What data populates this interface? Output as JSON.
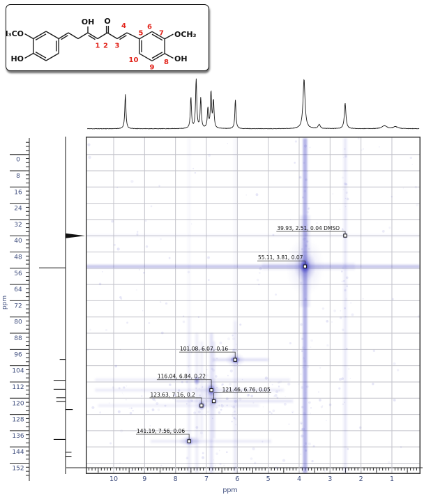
{
  "figure": {
    "type": "2D HSQC NMR spectrum with 1H and 13C projections and molecular structure inset",
    "solvent_note": "DMSO"
  },
  "structure": {
    "name": "curcumin (enol form)",
    "atom_labels": {
      "left_methoxy": "H₃CO",
      "left_hydroxyl": "HO",
      "enol_oh": "OH",
      "ketone_o": "O",
      "right_methoxy": "OCH₃",
      "right_hydroxyl": "OH"
    },
    "position_numbers": [
      "1",
      "2",
      "3",
      "4",
      "5",
      "6",
      "7",
      "8",
      "9",
      "10"
    ],
    "number_color": "#e2231a"
  },
  "chart_data": {
    "type": "heatmap",
    "subtype": "2D NMR correlation map (1H horizontal vs 13C vertical)",
    "x_axis": {
      "label": "ppm",
      "nucleus": "1H",
      "range": [
        10.9,
        0.07
      ],
      "ticks": [
        10,
        9,
        8,
        7,
        6,
        5,
        4,
        3,
        2,
        1
      ]
    },
    "y_axis": {
      "label": "ppm",
      "nucleus": "13C",
      "range": [
        -8.8,
        157.3
      ],
      "ticks": [
        0,
        8,
        16,
        24,
        32,
        40,
        48,
        56,
        64,
        72,
        80,
        88,
        96,
        104,
        112,
        120,
        128,
        136,
        144,
        152
      ]
    },
    "grid": true,
    "contour_color": "#4040c0",
    "grid_color": "#c2c2ca",
    "axis_label_color": "#3f4e7e",
    "cross_peaks": [
      {
        "c13": 39.93,
        "h1": 2.51,
        "intensity": 0.04,
        "label": "39.93, 2.51, 0.04 DMSO",
        "assignment": "DMSO"
      },
      {
        "c13": 55.11,
        "h1": 3.81,
        "intensity": 0.07,
        "label": "55.11, 3.81, 0.07"
      },
      {
        "c13": 101.08,
        "h1": 6.07,
        "intensity": 0.16,
        "label": "101.08, 6.07, 0.16"
      },
      {
        "c13": 116.04,
        "h1": 6.84,
        "intensity": 0.22,
        "label": "116.04, 6.84, 0.22"
      },
      {
        "c13": 123.63,
        "h1": 7.16,
        "intensity": 0.2,
        "label": "123.63, 7.16, 0.2"
      },
      {
        "c13": 121.46,
        "h1": 6.76,
        "intensity": 0.05,
        "label": "121.46, 6.76, 0.05"
      },
      {
        "c13": 141.19,
        "h1": 7.56,
        "intensity": 0.06,
        "label": "141.19, 7.56, 0.06"
      }
    ],
    "unlabeled_cross_peaks": [
      {
        "c13": 111.3,
        "h1": 7.31
      }
    ],
    "h1_projection_peaks": [
      {
        "ppm": 9.62,
        "rel_height": 0.7
      },
      {
        "ppm": 7.5,
        "rel_height": 0.63
      },
      {
        "ppm": 7.33,
        "rel_height": 1.0
      },
      {
        "ppm": 7.18,
        "rel_height": 0.61
      },
      {
        "ppm": 6.95,
        "rel_height": 0.4
      },
      {
        "ppm": 6.85,
        "rel_height": 0.73
      },
      {
        "ppm": 6.77,
        "rel_height": 0.56
      },
      {
        "ppm": 6.06,
        "rel_height": 0.59
      },
      {
        "ppm": 3.84,
        "rel_height": 1.0
      },
      {
        "ppm": 3.35,
        "rel_height": 0.08
      },
      {
        "ppm": 2.51,
        "rel_height": 0.52
      },
      {
        "ppm": 1.24,
        "rel_height": 0.06
      },
      {
        "ppm": 0.88,
        "rel_height": 0.04
      }
    ],
    "c13_projection_peaks": [
      {
        "ppm": 40.0,
        "direction": "right",
        "rel_len": 0.75,
        "strong": true
      },
      {
        "ppm": 55.8,
        "direction": "left",
        "rel_len": 1.0,
        "strong": false
      },
      {
        "ppm": 100.9,
        "direction": "left",
        "rel_len": 0.22,
        "strong": false
      },
      {
        "ppm": 111.2,
        "direction": "left",
        "rel_len": 0.45,
        "strong": false
      },
      {
        "ppm": 115.6,
        "direction": "left",
        "rel_len": 0.45,
        "strong": false
      },
      {
        "ppm": 119.8,
        "direction": "left",
        "rel_len": 0.35,
        "strong": false
      },
      {
        "ppm": 121.6,
        "direction": "left",
        "rel_len": 0.35,
        "strong": false
      },
      {
        "ppm": 125.6,
        "direction": "right",
        "rel_len": 0.34,
        "strong": false
      },
      {
        "ppm": 140.3,
        "direction": "left",
        "rel_len": 0.45,
        "strong": false
      },
      {
        "ppm": 146.6,
        "direction": "right",
        "rel_len": 0.28,
        "strong": false
      },
      {
        "ppm": 148.6,
        "direction": "right",
        "rel_len": 0.28,
        "strong": false
      }
    ]
  }
}
